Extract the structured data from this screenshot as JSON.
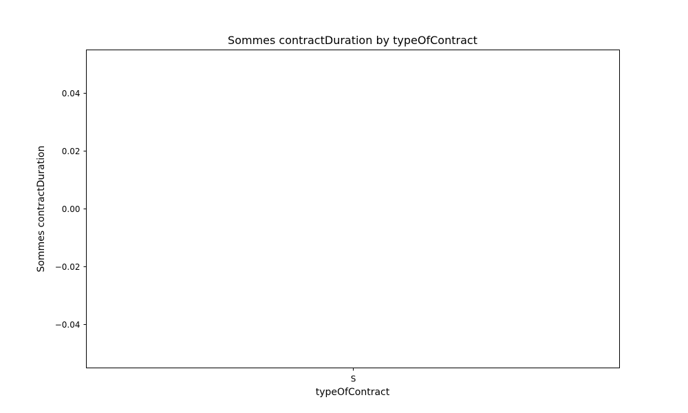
{
  "chart_data": {
    "type": "bar",
    "title": "Sommes contractDuration by typeOfContract",
    "xlabel": "typeOfContract",
    "ylabel": "Sommes contractDuration",
    "categories": [
      "S"
    ],
    "values": [
      0
    ],
    "ylim": [
      -0.055,
      0.055
    ],
    "yticks": [
      -0.04,
      -0.02,
      0.0,
      0.02,
      0.04
    ],
    "ytick_labels": [
      "−0.04",
      "−0.02",
      "0.00",
      "0.02",
      "0.04"
    ],
    "grid": false,
    "legend": "none"
  }
}
